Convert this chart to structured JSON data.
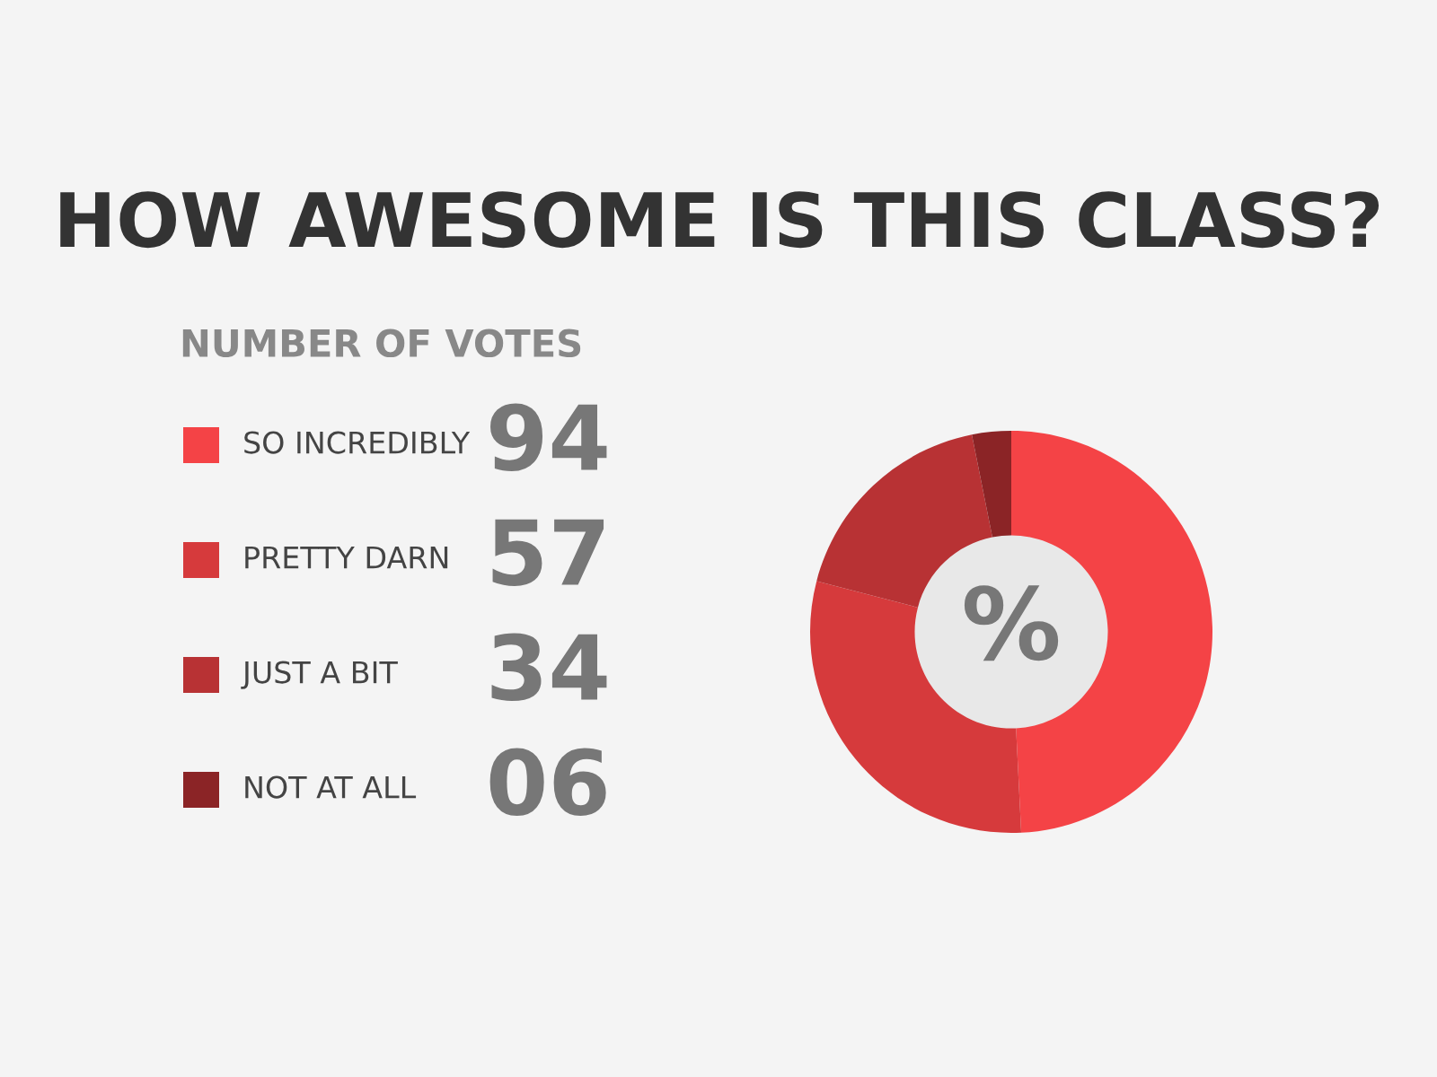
{
  "chart_data": {
    "type": "donut",
    "title": "HOW AWESOME IS THIS CLASS?",
    "legend_title": "NUMBER OF VOTES",
    "categories": [
      "SO INCREDIBLY",
      "PRETTY DARN",
      "JUST A BIT",
      "NOT AT ALL"
    ],
    "values": [
      94,
      57,
      34,
      6
    ],
    "value_labels": [
      "94",
      "57",
      "34",
      "06"
    ],
    "colors": [
      "#f44346",
      "#d63a3c",
      "#b83234",
      "#8b2426"
    ],
    "legend": "left",
    "annotations": [
      "%"
    ]
  }
}
